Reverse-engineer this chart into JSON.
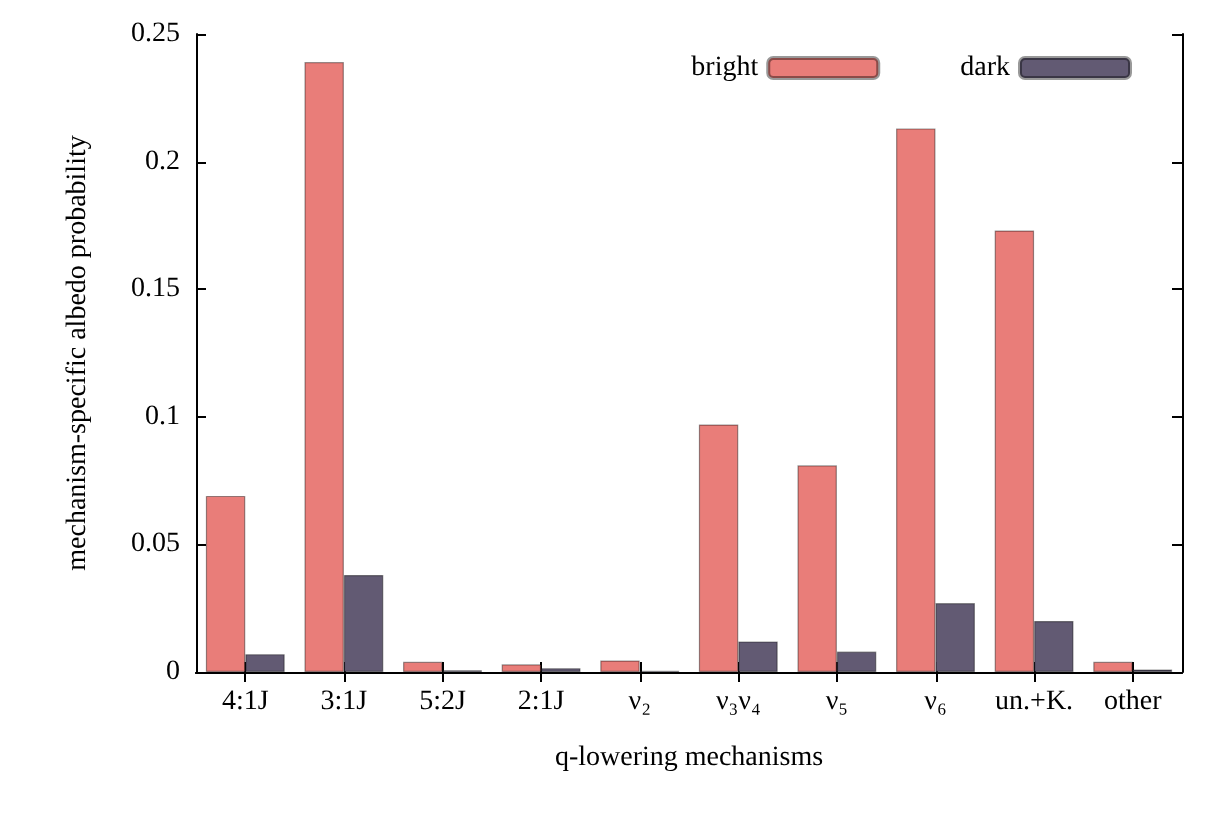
{
  "chart_data": {
    "type": "bar",
    "xlabel": "q-lowering mechanisms",
    "ylabel": "mechanism-specific albedo probability",
    "categories": [
      "4:1J",
      "3:1J",
      "5:2J",
      "2:1J",
      "ν₂",
      "ν₃ν₄",
      "ν₅",
      "ν₆",
      "un.+K.",
      "other"
    ],
    "series": [
      {
        "name": "bright",
        "color": "#e97d79",
        "values": [
          0.069,
          0.239,
          0.004,
          0.003,
          0.0045,
          0.097,
          0.081,
          0.213,
          0.173,
          0.004
        ]
      },
      {
        "name": "dark",
        "color": "#625a73",
        "values": [
          0.007,
          0.038,
          0.0007,
          0.0015,
          0.0005,
          0.012,
          0.008,
          0.027,
          0.02,
          0.001
        ]
      }
    ],
    "ylim": [
      0,
      0.25
    ],
    "yticks": [
      0,
      0.05,
      0.1,
      0.15,
      0.2,
      0.25
    ],
    "grid": false,
    "legend": "top right"
  }
}
